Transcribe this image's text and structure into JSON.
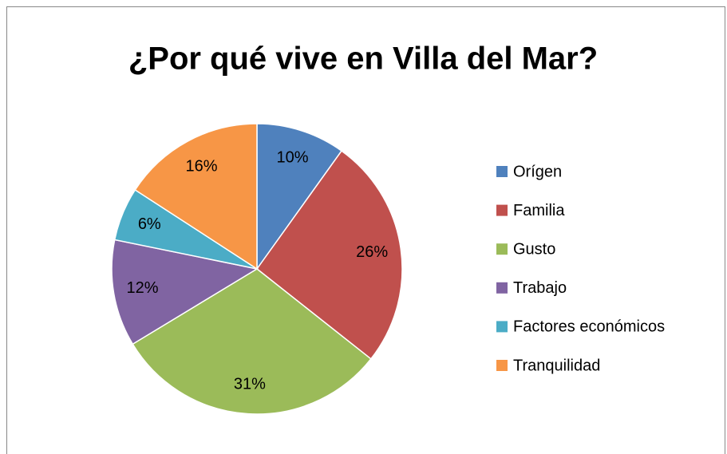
{
  "chart_data": {
    "type": "pie",
    "title": "¿Por qué vive en Villa del Mar?",
    "categories": [
      "Orígen",
      "Familia",
      "Gusto",
      "Trabajo",
      "Factores económicos",
      "Tranquilidad"
    ],
    "values": [
      10,
      26,
      31,
      12,
      6,
      16
    ],
    "value_labels": [
      "10%",
      "26%",
      "31%",
      "12%",
      "6%",
      "16%"
    ],
    "colors": [
      "#4f81bd",
      "#c0504d",
      "#9bbb59",
      "#8064a2",
      "#4bacc6",
      "#f79646"
    ],
    "legend": "right"
  }
}
